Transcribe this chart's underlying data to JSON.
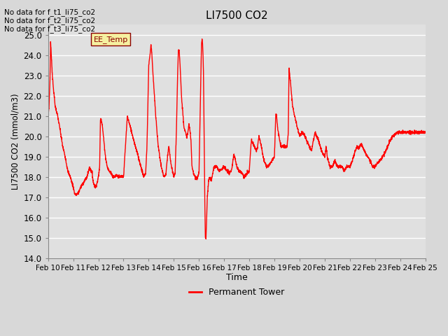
{
  "title": "LI7500 CO2",
  "ylabel": "LI7500 CO2 (mmol/m3)",
  "xlabel": "Time",
  "ylim": [
    14.0,
    25.5
  ],
  "yticks": [
    14.0,
    15.0,
    16.0,
    17.0,
    18.0,
    19.0,
    20.0,
    21.0,
    22.0,
    23.0,
    24.0,
    25.0
  ],
  "line_color": "#ff0000",
  "line_width": 1.0,
  "bg_color": "#d8d8d8",
  "plot_bg_color": "#e0e0e0",
  "grid_color": "#ffffff",
  "no_data_texts": [
    "No data for f_t1_li75_co2",
    "No data for f_t2_li75_co2",
    "No data for f_t3_li75_co2"
  ],
  "ee_temp_label": "EE_Temp",
  "legend_label": "Permanent Tower",
  "xticklabels": [
    "Feb 10",
    "Feb 11",
    "Feb 12",
    "Feb 13",
    "Feb 14",
    "Feb 15",
    "Feb 16",
    "Feb 17",
    "Feb 18",
    "Feb 19",
    "Feb 20",
    "Feb 21",
    "Feb 22",
    "Feb 23",
    "Feb 24",
    "Feb 25"
  ]
}
